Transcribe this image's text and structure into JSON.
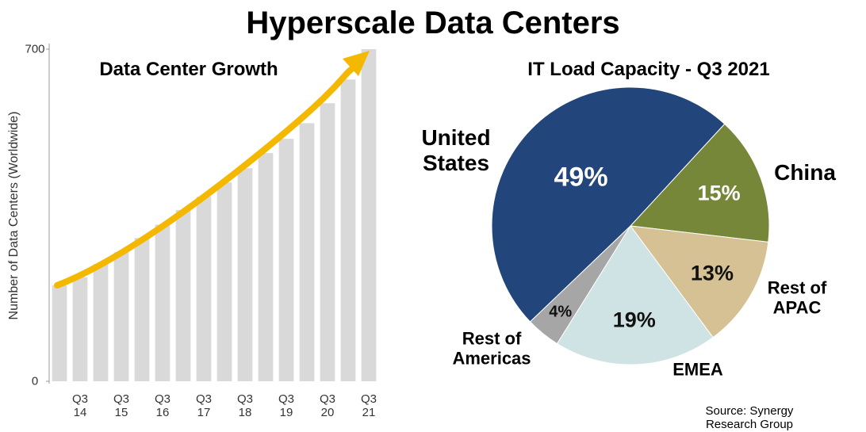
{
  "title": "Hyperscale Data Centers",
  "source": "Source: Synergy Research Group",
  "chart_data": [
    {
      "type": "bar",
      "title": "Data Center Growth",
      "y_label": "Number of Data Centers (Worldwide)",
      "categories": [
        null,
        "Q3\n14",
        null,
        "Q3\n15",
        null,
        "Q3\n16",
        null,
        "Q3\n17",
        null,
        "Q3\n18",
        null,
        "Q3\n19",
        null,
        "Q3\n20",
        null,
        "Q3\n21"
      ],
      "values": [
        202,
        219,
        247,
        272,
        302,
        330,
        361,
        389,
        419,
        449,
        481,
        511,
        544,
        586,
        636,
        700
      ],
      "color": "#d9d9d9",
      "ylim": [
        0,
        700
      ],
      "yticks": [
        0,
        700
      ],
      "grid": false
    },
    {
      "type": "pie",
      "title": "IT Load Capacity - Q3 2021",
      "categories": [
        "China",
        "Rest of\nAPAC",
        "EMEA",
        "Rest of\nAmericas",
        "United\nStates"
      ],
      "values": [
        15,
        13,
        19,
        4,
        49
      ],
      "value_labels": [
        "15%",
        "13%",
        "19%",
        "4%",
        "49%"
      ],
      "colors": [
        "#76873a",
        "#d5c193",
        "#cfe2e4",
        "#a6a6a6",
        "#22467b"
      ]
    }
  ]
}
